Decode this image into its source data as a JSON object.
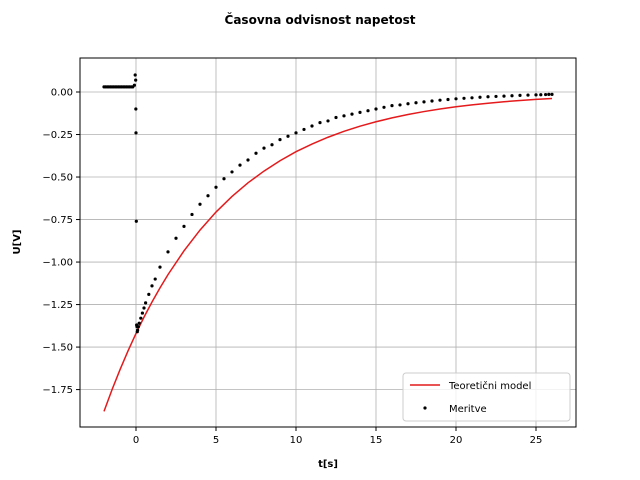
{
  "chart_data": {
    "type": "scatter",
    "title": "Časovna odvisnost napetost",
    "xlabel": "t[s]",
    "ylabel": "U[V]",
    "xlim": [
      -3.5,
      27.5
    ],
    "ylim": [
      -1.97,
      0.2
    ],
    "x_ticks": [
      0,
      5,
      10,
      15,
      20,
      25
    ],
    "x_tick_labels": [
      "0",
      "5",
      "10",
      "15",
      "20",
      "25"
    ],
    "y_ticks": [
      0.0,
      -0.25,
      -0.5,
      -0.75,
      -1.0,
      -1.25,
      -1.5,
      -1.75
    ],
    "y_tick_labels": [
      "0.00",
      "−0.25",
      "−0.50",
      "−0.75",
      "−1.00",
      "−1.25",
      "−1.50",
      "−1.75"
    ],
    "grid": true,
    "legend_position": "lower-right",
    "series": [
      {
        "name": "Teoretični model",
        "kind": "line",
        "color": "#e41a1c",
        "x": [
          -2,
          -1.5,
          -1,
          -0.5,
          0,
          0.5,
          1,
          1.5,
          2,
          3,
          4,
          5,
          6,
          7,
          8,
          9,
          10,
          11,
          12,
          13,
          14,
          15,
          16,
          17,
          18,
          19,
          20,
          21,
          22,
          23,
          24,
          25,
          26
        ],
        "y": [
          -1.878,
          -1.751,
          -1.633,
          -1.523,
          -1.42,
          -1.324,
          -1.235,
          -1.152,
          -1.074,
          -0.934,
          -0.812,
          -0.706,
          -0.614,
          -0.534,
          -0.465,
          -0.404,
          -0.351,
          -0.306,
          -0.266,
          -0.231,
          -0.201,
          -0.175,
          -0.152,
          -0.132,
          -0.115,
          -0.1,
          -0.087,
          -0.076,
          -0.066,
          -0.057,
          -0.05,
          -0.043,
          -0.038
        ]
      },
      {
        "name": "Meritve",
        "kind": "scatter",
        "color": "#000000",
        "x": [
          -2.0,
          -1.9,
          -1.8,
          -1.7,
          -1.6,
          -1.5,
          -1.4,
          -1.3,
          -1.2,
          -1.1,
          -1.0,
          -0.9,
          -0.8,
          -0.7,
          -0.6,
          -0.5,
          -0.4,
          -0.3,
          -0.2,
          -0.1,
          -0.05,
          -0.02,
          -0.01,
          0.0,
          0.02,
          0.04,
          0.06,
          0.08,
          0.1,
          0.15,
          0.2,
          0.3,
          0.4,
          0.5,
          0.6,
          0.8,
          1.0,
          1.2,
          1.5,
          2.0,
          2.5,
          3.0,
          3.5,
          4.0,
          4.5,
          5.0,
          5.5,
          6.0,
          6.5,
          7.0,
          7.5,
          8.0,
          8.5,
          9.0,
          9.5,
          10.0,
          10.5,
          11.0,
          11.5,
          12.0,
          12.5,
          13.0,
          13.5,
          14.0,
          14.5,
          15.0,
          15.5,
          16.0,
          16.5,
          17.0,
          17.5,
          18.0,
          18.5,
          19.0,
          19.5,
          20.0,
          20.5,
          21.0,
          21.5,
          22.0,
          22.5,
          23.0,
          23.5,
          24.0,
          24.5,
          25.0,
          25.3,
          25.6,
          25.8,
          26.0
        ],
        "y": [
          0.03,
          0.03,
          0.03,
          0.03,
          0.03,
          0.03,
          0.03,
          0.03,
          0.03,
          0.03,
          0.03,
          0.03,
          0.03,
          0.03,
          0.03,
          0.03,
          0.03,
          0.03,
          0.03,
          0.04,
          0.1,
          0.07,
          -0.1,
          -0.24,
          -0.76,
          -1.37,
          -1.38,
          -1.41,
          -1.4,
          -1.38,
          -1.36,
          -1.33,
          -1.3,
          -1.27,
          -1.24,
          -1.19,
          -1.14,
          -1.1,
          -1.03,
          -0.94,
          -0.86,
          -0.79,
          -0.72,
          -0.66,
          -0.61,
          -0.56,
          -0.51,
          -0.47,
          -0.43,
          -0.4,
          -0.36,
          -0.33,
          -0.31,
          -0.28,
          -0.26,
          -0.24,
          -0.22,
          -0.2,
          -0.18,
          -0.17,
          -0.15,
          -0.14,
          -0.13,
          -0.12,
          -0.11,
          -0.1,
          -0.09,
          -0.08,
          -0.076,
          -0.069,
          -0.063,
          -0.058,
          -0.053,
          -0.048,
          -0.044,
          -0.04,
          -0.037,
          -0.034,
          -0.031,
          -0.028,
          -0.026,
          -0.024,
          -0.022,
          -0.02,
          -0.018,
          -0.017,
          -0.016,
          -0.015,
          -0.014,
          -0.014
        ]
      }
    ]
  }
}
